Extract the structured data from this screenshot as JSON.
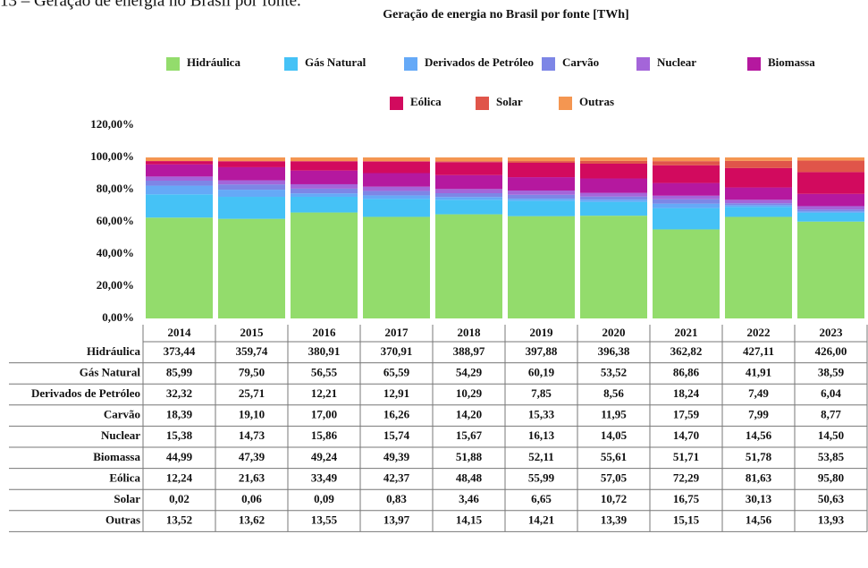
{
  "caption": "13 – Geração de energia no Brasil por fonte.",
  "chart_data": {
    "type": "bar",
    "stacking": "percent",
    "title": "Geração de energia no Brasil por fonte [TWh]",
    "categories": [
      "2014",
      "2015",
      "2016",
      "2017",
      "2018",
      "2019",
      "2020",
      "2021",
      "2022",
      "2023"
    ],
    "ylim": [
      0,
      120
    ],
    "yticks": [
      {
        "value": 0,
        "label": "0,00%"
      },
      {
        "value": 20,
        "label": "20,00%"
      },
      {
        "value": 40,
        "label": "40,00%"
      },
      {
        "value": 60,
        "label": "60,00%"
      },
      {
        "value": 80,
        "label": "80,00%"
      },
      {
        "value": 100,
        "label": "100,00%"
      },
      {
        "value": 120,
        "label": "120,00%"
      }
    ],
    "legend": "top",
    "series": [
      {
        "name": "Hidráulica",
        "color": "#93dc6c",
        "values": [
          373.44,
          359.74,
          380.91,
          370.91,
          388.97,
          397.88,
          396.38,
          362.82,
          427.11,
          426.0
        ],
        "value_labels": [
          "373,44",
          "359,74",
          "380,91",
          "370,91",
          "388,97",
          "397,88",
          "396,38",
          "362,82",
          "427,11",
          "426,00"
        ]
      },
      {
        "name": "Gás Natural",
        "color": "#45c2f6",
        "values": [
          85.99,
          79.5,
          56.55,
          65.59,
          54.29,
          60.19,
          53.52,
          86.86,
          41.91,
          38.59
        ],
        "value_labels": [
          "85,99",
          "79,50",
          "56,55",
          "65,59",
          "54,29",
          "60,19",
          "53,52",
          "86,86",
          "41,91",
          "38,59"
        ]
      },
      {
        "name": "Derivados de Petróleo",
        "color": "#65a9f7",
        "values": [
          32.32,
          25.71,
          12.21,
          12.91,
          10.29,
          7.85,
          8.56,
          18.24,
          7.49,
          6.04
        ],
        "value_labels": [
          "32,32",
          "25,71",
          "12,21",
          "12,91",
          "10,29",
          "7,85",
          "8,56",
          "18,24",
          "7,49",
          "6,04"
        ]
      },
      {
        "name": "Carvão",
        "color": "#7d86e6",
        "values": [
          18.39,
          19.1,
          17.0,
          16.26,
          14.2,
          15.33,
          11.95,
          17.59,
          7.99,
          8.77
        ],
        "value_labels": [
          "18,39",
          "19,10",
          "17,00",
          "16,26",
          "14,20",
          "15,33",
          "11,95",
          "17,59",
          "7,99",
          "8,77"
        ]
      },
      {
        "name": "Nuclear",
        "color": "#a465d9",
        "values": [
          15.38,
          14.73,
          15.86,
          15.74,
          15.67,
          16.13,
          14.05,
          14.7,
          14.56,
          14.5
        ],
        "value_labels": [
          "15,38",
          "14,73",
          "15,86",
          "15,74",
          "15,67",
          "16,13",
          "14,05",
          "14,70",
          "14,56",
          "14,50"
        ]
      },
      {
        "name": "Biomassa",
        "color": "#b5189f",
        "values": [
          44.99,
          47.39,
          49.24,
          49.39,
          51.88,
          52.11,
          55.61,
          51.71,
          51.78,
          53.85
        ],
        "value_labels": [
          "44,99",
          "47,39",
          "49,24",
          "49,39",
          "51,88",
          "52,11",
          "55,61",
          "51,71",
          "51,78",
          "53,85"
        ]
      },
      {
        "name": "Eólica",
        "color": "#d20a5e",
        "values": [
          12.24,
          21.63,
          33.49,
          42.37,
          48.48,
          55.99,
          57.05,
          72.29,
          81.63,
          95.8
        ],
        "value_labels": [
          "12,24",
          "21,63",
          "33,49",
          "42,37",
          "48,48",
          "55,99",
          "57,05",
          "72,29",
          "81,63",
          "95,80"
        ]
      },
      {
        "name": "Solar",
        "color": "#e0554a",
        "values": [
          0.02,
          0.06,
          0.09,
          0.83,
          3.46,
          6.65,
          10.72,
          16.75,
          30.13,
          50.63
        ],
        "value_labels": [
          "0,02",
          "0,06",
          "0,09",
          "0,83",
          "3,46",
          "6,65",
          "10,72",
          "16,75",
          "30,13",
          "50,63"
        ]
      },
      {
        "name": "Outras",
        "color": "#f49651",
        "values": [
          13.52,
          13.62,
          13.55,
          13.97,
          14.15,
          14.21,
          13.39,
          15.15,
          14.56,
          13.93
        ],
        "value_labels": [
          "13,52",
          "13,62",
          "13,55",
          "13,97",
          "14,15",
          "14,21",
          "13,39",
          "15,15",
          "14,56",
          "13,93"
        ]
      }
    ]
  }
}
